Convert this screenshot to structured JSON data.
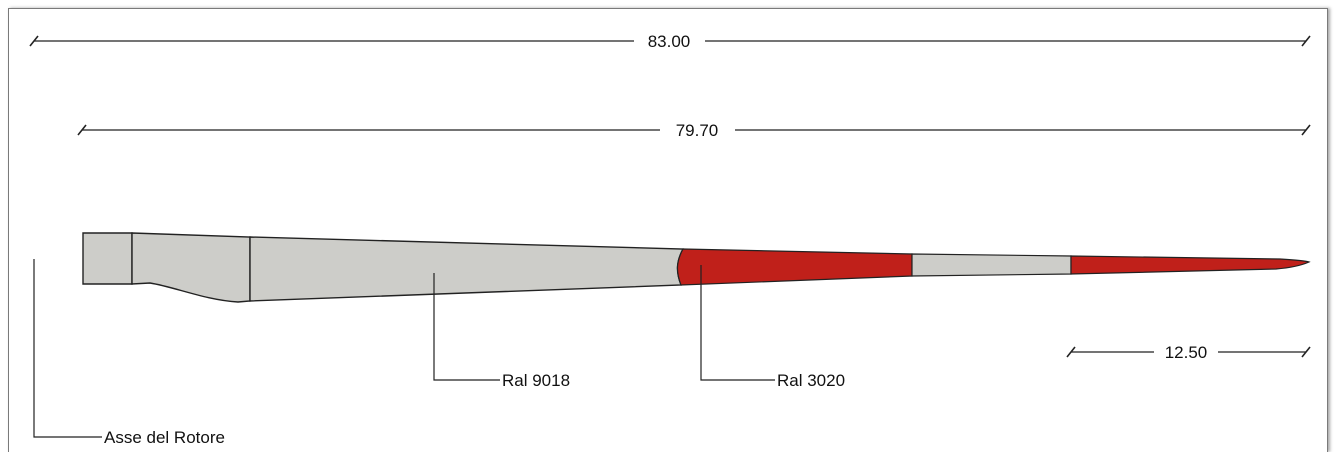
{
  "dimensions": {
    "overall_length": "83.00",
    "blade_length": "79.70",
    "tip_band_length": "12.50"
  },
  "labels": {
    "white_section": "Ral 9018",
    "red_section": "Ral 3020",
    "rotor_axis": "Asse del Rotore"
  },
  "colors": {
    "blade_grey": "#cdcdc9",
    "band_red": "#c0201a",
    "outline": "#222222"
  }
}
